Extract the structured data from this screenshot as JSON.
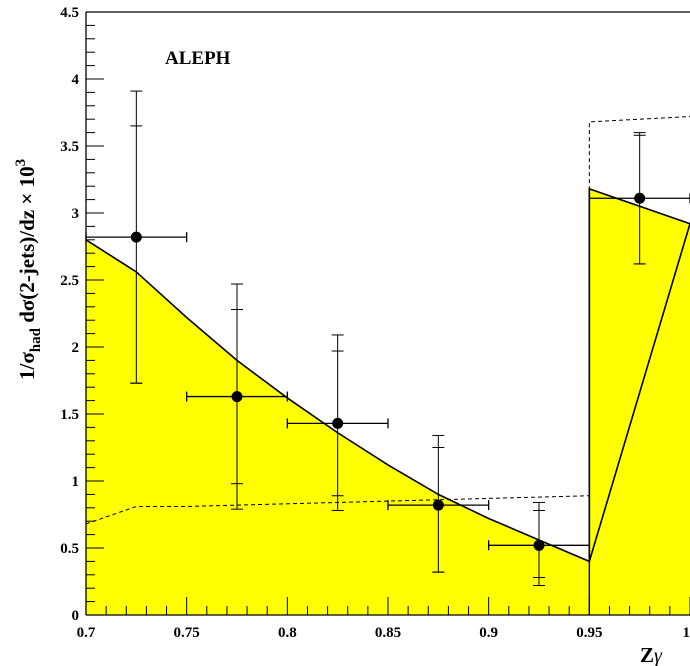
{
  "chart_data": {
    "type": "histogram",
    "title": "ALEPH",
    "xlabel": "Zγ",
    "ylabel_parts": {
      "prefix": "1/σ",
      "prefix_sub": "had",
      "mid": " dσ(2-jets)/dz × 10",
      "sup": "3"
    },
    "xlim": [
      0.7,
      1.0
    ],
    "ylim": [
      0,
      4.5
    ],
    "x_ticks": [
      "0.7",
      "0.75",
      "0.8",
      "0.85",
      "0.9",
      "0.95",
      "1"
    ],
    "x_tick_values": [
      0.7,
      0.75,
      0.8,
      0.85,
      0.9,
      0.95,
      1.0
    ],
    "y_ticks": [
      "0",
      "0.5",
      "1",
      "1.5",
      "2",
      "2.5",
      "3",
      "3.5",
      "4",
      "4.5"
    ],
    "y_tick_values": [
      0,
      0.5,
      1,
      1.5,
      2,
      2.5,
      3,
      3.5,
      4,
      4.5
    ],
    "fill_color": "#ffff00",
    "series": [
      {
        "style": "solid-filled",
        "x": [
          0.7,
          0.725,
          0.75,
          0.775,
          0.8,
          0.825,
          0.85,
          0.875,
          0.9,
          0.925,
          0.95,
          0.95,
          0.975,
          1.0
        ],
        "y": [
          2.8,
          2.56,
          2.22,
          1.9,
          1.62,
          1.36,
          1.12,
          0.9,
          0.72,
          0.56,
          0.4,
          3.18,
          3.05,
          2.92
        ]
      },
      {
        "style": "dashed",
        "x": [
          0.7,
          0.725,
          0.75,
          0.8,
          0.85,
          0.9,
          0.95,
          0.95,
          1.0
        ],
        "y": [
          0.68,
          0.81,
          0.81,
          0.83,
          0.85,
          0.87,
          0.89,
          3.68,
          3.72
        ]
      }
    ],
    "points": [
      {
        "x": 0.725,
        "y": 2.82,
        "xerr": 0.025,
        "ystat": [
          1.73,
          3.65
        ],
        "ytot": [
          1.73,
          3.91
        ]
      },
      {
        "x": 0.775,
        "y": 1.63,
        "xerr": 0.025,
        "ystat": [
          0.98,
          2.28
        ],
        "ytot": [
          0.79,
          2.47
        ]
      },
      {
        "x": 0.825,
        "y": 1.43,
        "xerr": 0.025,
        "ystat": [
          0.89,
          1.97
        ],
        "ytot": [
          0.78,
          2.09
        ]
      },
      {
        "x": 0.875,
        "y": 0.82,
        "xerr": 0.025,
        "ystat": [
          0.32,
          1.25
        ],
        "ytot": [
          0.32,
          1.34
        ]
      },
      {
        "x": 0.925,
        "y": 0.52,
        "xerr": 0.025,
        "ystat": [
          0.28,
          0.78
        ],
        "ytot": [
          0.22,
          0.84
        ]
      },
      {
        "x": 0.975,
        "y": 3.11,
        "xerr": 0.025,
        "ystat": [
          2.62,
          3.58
        ],
        "ytot": [
          2.62,
          3.6
        ]
      }
    ]
  }
}
